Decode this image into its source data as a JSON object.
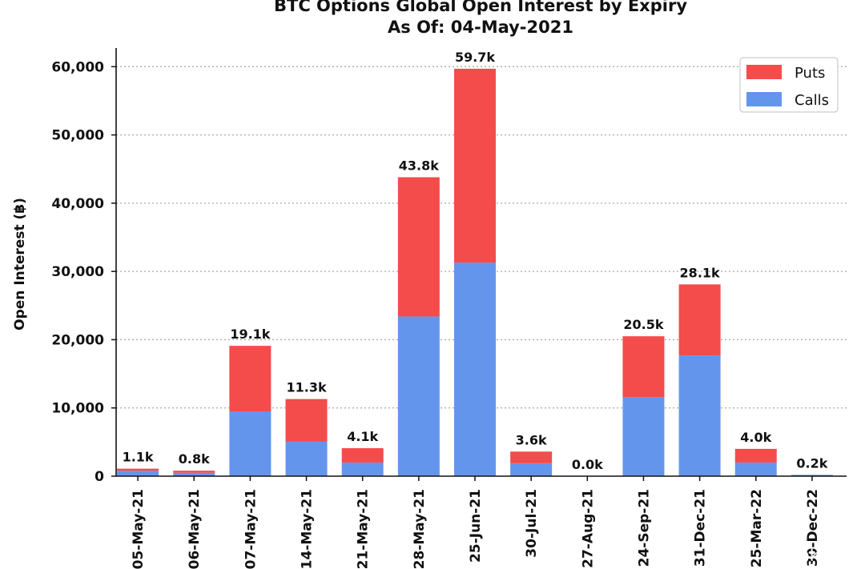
{
  "chart_data": {
    "type": "bar",
    "stacked": true,
    "title": "BTC Options Global Open Interest by Expiry",
    "subtitle": "As Of: 04-May-2021",
    "xlabel": "",
    "ylabel": "Open Interest (฿)",
    "ylim": [
      0,
      62500
    ],
    "yticks": [
      0,
      10000,
      20000,
      30000,
      40000,
      50000,
      60000
    ],
    "ytick_labels": [
      "0",
      "10,000",
      "20,000",
      "30,000",
      "40,000",
      "50,000",
      "60,000"
    ],
    "grid": "horizontal dotted",
    "legend_position": "top-right",
    "categories": [
      "05-May-21",
      "06-May-21",
      "07-May-21",
      "14-May-21",
      "21-May-21",
      "28-May-21",
      "25-Jun-21",
      "30-Jul-21",
      "27-Aug-21",
      "24-Sep-21",
      "31-Dec-21",
      "25-Mar-22",
      "30-Dec-22"
    ],
    "series": [
      {
        "name": "Calls",
        "color": "#6495ed",
        "values": [
          800,
          500,
          9500,
          5100,
          2000,
          23400,
          31300,
          1900,
          0,
          11600,
          17700,
          2000,
          200
        ]
      },
      {
        "name": "Puts",
        "color": "#f44b4b",
        "values": [
          300,
          300,
          9600,
          6200,
          2100,
          20400,
          28400,
          1700,
          0,
          8900,
          10400,
          2000,
          0
        ]
      }
    ],
    "totals_labels": [
      "1.1k",
      "0.8k",
      "19.1k",
      "11.3k",
      "4.1k",
      "43.8k",
      "59.7k",
      "3.6k",
      "0.0k",
      "20.5k",
      "28.1k",
      "4.0k",
      "0.2k"
    ]
  },
  "watermark": "Greeks"
}
